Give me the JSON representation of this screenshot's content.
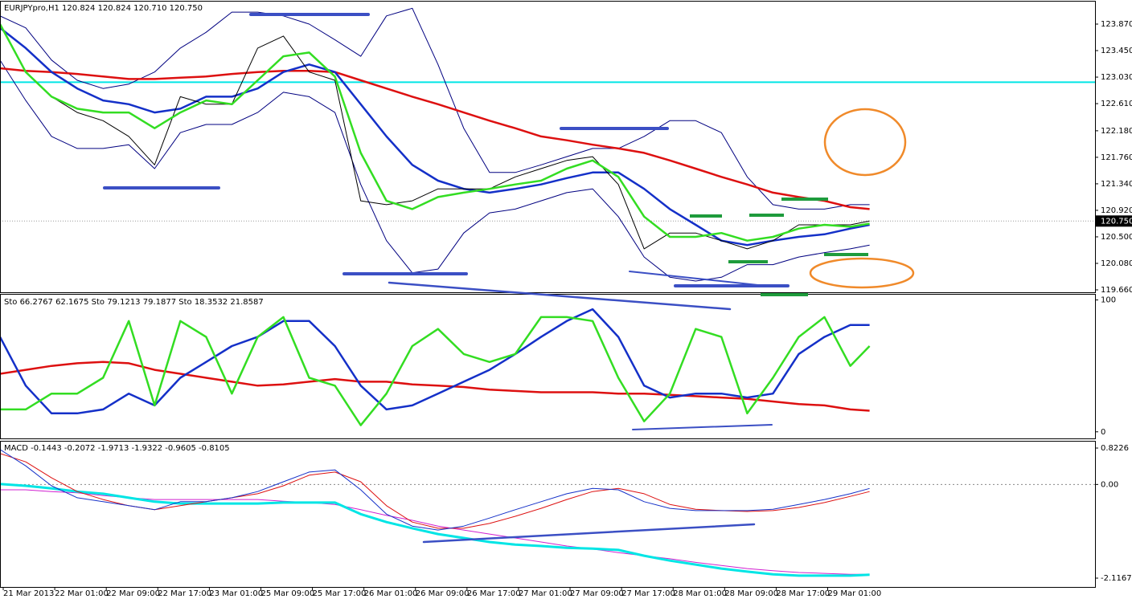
{
  "chart_data": [
    {
      "type": "line",
      "title": "EURJPYpro,H1  120.824 120.824 120.710 120.750",
      "x": [
        0,
        4,
        8,
        12,
        16,
        20,
        24,
        28,
        32,
        36,
        40,
        44,
        48,
        52,
        56,
        60,
        64,
        68,
        72,
        76,
        80,
        84,
        88,
        92,
        96,
        100,
        104,
        108,
        112,
        116,
        120,
        124,
        128,
        132,
        135
      ],
      "xlim": [
        0,
        170
      ],
      "ylim": [
        119.622,
        124.226
      ],
      "yticks": [
        {
          "value": 123.87,
          "label": "123.870"
        },
        {
          "value": 123.45,
          "label": "123.450"
        },
        {
          "value": 123.03,
          "label": "123.030"
        },
        {
          "value": 122.61,
          "label": "122.610"
        },
        {
          "value": 122.18,
          "label": "122.180"
        },
        {
          "value": 121.76,
          "label": "121.760"
        },
        {
          "value": 121.34,
          "label": "121.340"
        },
        {
          "value": 120.92,
          "label": "120.920"
        },
        {
          "value": 120.5,
          "label": "120.500"
        },
        {
          "value": 120.08,
          "label": "120.080"
        },
        {
          "value": 119.66,
          "label": "119.660"
        }
      ],
      "last_price": {
        "value": 120.75,
        "label": "120.750"
      },
      "level": {
        "value": 122.95,
        "color": "#00e5e5"
      },
      "series": [
        {
          "color": "#000080",
          "values": [
            124.0,
            123.81,
            123.3,
            122.98,
            122.85,
            122.92,
            123.11,
            123.49,
            123.74,
            124.06,
            124.06,
            124.0,
            123.87,
            123.62,
            123.36,
            124.0,
            124.12,
            123.23,
            122.22,
            121.52,
            121.52,
            121.64,
            121.77,
            121.9,
            121.9,
            122.09,
            122.34,
            122.34,
            122.15,
            121.45,
            121.01,
            120.94,
            120.94,
            121.01,
            121.01
          ]
        },
        {
          "color": "#000080",
          "values": [
            123.3,
            122.66,
            122.09,
            121.9,
            121.9,
            121.96,
            121.58,
            122.15,
            122.28,
            122.28,
            122.47,
            122.79,
            122.72,
            122.47,
            121.33,
            120.44,
            119.93,
            119.99,
            120.56,
            120.88,
            120.94,
            121.07,
            121.2,
            121.26,
            120.82,
            120.18,
            119.86,
            119.8,
            119.86,
            120.06,
            120.06,
            120.18,
            120.25,
            120.31,
            120.37
          ]
        },
        {
          "color": "#dd1010",
          "values": [
            123.17,
            123.13,
            123.11,
            123.08,
            123.04,
            123.0,
            123.0,
            123.02,
            123.04,
            123.08,
            123.11,
            123.13,
            123.13,
            123.11,
            122.98,
            122.85,
            122.72,
            122.6,
            122.47,
            122.34,
            122.22,
            122.09,
            122.03,
            121.96,
            121.9,
            121.83,
            121.71,
            121.58,
            121.45,
            121.33,
            121.2,
            121.13,
            121.07,
            120.97,
            120.94
          ]
        },
        {
          "color": "#1430c8",
          "values": [
            123.81,
            123.49,
            123.11,
            122.85,
            122.66,
            122.6,
            122.47,
            122.53,
            122.72,
            122.72,
            122.85,
            123.11,
            123.23,
            123.11,
            122.6,
            122.09,
            121.64,
            121.39,
            121.26,
            121.2,
            121.26,
            121.33,
            121.43,
            121.52,
            121.52,
            121.26,
            120.94,
            120.69,
            120.44,
            120.37,
            120.44,
            120.5,
            120.54,
            120.63,
            120.69
          ]
        },
        {
          "color": "#000000",
          "values": [
            123.87,
            123.11,
            122.72,
            122.47,
            122.34,
            122.09,
            121.64,
            122.72,
            122.6,
            122.6,
            123.49,
            123.68,
            123.11,
            122.98,
            121.07,
            121.01,
            121.07,
            121.26,
            121.26,
            121.26,
            121.45,
            121.58,
            121.71,
            121.77,
            121.33,
            120.31,
            120.56,
            120.56,
            120.44,
            120.31,
            120.44,
            120.69,
            120.69,
            120.69,
            120.75
          ]
        },
        {
          "color": "#33dd22",
          "values": [
            123.87,
            123.11,
            122.72,
            122.53,
            122.47,
            122.47,
            122.22,
            122.47,
            122.66,
            122.6,
            122.98,
            123.36,
            123.42,
            123.04,
            121.83,
            121.07,
            120.94,
            121.13,
            121.2,
            121.26,
            121.33,
            121.39,
            121.58,
            121.71,
            121.45,
            120.82,
            120.5,
            120.5,
            120.56,
            120.44,
            120.5,
            120.63,
            120.69,
            120.66,
            120.71
          ]
        }
      ]
    },
    {
      "type": "line",
      "title": "Sto 66.2767 62.1675  Sto 79.1213 79.1877  Sto 18.3532 21.8587",
      "x": [
        0,
        4,
        8,
        12,
        16,
        20,
        24,
        28,
        32,
        36,
        40,
        44,
        48,
        52,
        56,
        60,
        64,
        68,
        72,
        76,
        80,
        84,
        88,
        92,
        96,
        100,
        104,
        108,
        112,
        116,
        120,
        124,
        128,
        132,
        135
      ],
      "xlim": [
        0,
        170
      ],
      "ylim": [
        -5,
        104
      ],
      "yticks": [
        0,
        100
      ],
      "series": [
        {
          "color": "#dd1010",
          "values": [
            44,
            47,
            50,
            52,
            53,
            52,
            47,
            44,
            41,
            38,
            35,
            36,
            38,
            40,
            38,
            38,
            36,
            35,
            34,
            32,
            31,
            30,
            30,
            30,
            29,
            29,
            28,
            27,
            26,
            25,
            23,
            21,
            20,
            17,
            16
          ]
        },
        {
          "color": "#1430c8",
          "values": [
            72,
            35,
            14,
            14,
            17,
            29,
            20,
            41,
            53,
            65,
            72,
            84,
            84,
            65,
            35,
            17,
            20,
            29,
            38,
            47,
            59,
            72,
            84,
            93,
            72,
            35,
            26,
            29,
            29,
            26,
            29,
            59,
            72,
            81,
            81
          ]
        },
        {
          "color": "#33dd22",
          "values": [
            17,
            17,
            29,
            29,
            41,
            84,
            20,
            84,
            72,
            29,
            72,
            87,
            41,
            35,
            5,
            29,
            65,
            78,
            59,
            53,
            59,
            87,
            87,
            84,
            41,
            8,
            29,
            78,
            72,
            14,
            41,
            72,
            87,
            50,
            65
          ]
        }
      ]
    },
    {
      "type": "line",
      "title": "MACD -0.1443 -0.2072 -1.9713 -1.9322 -0.9605 -0.8105",
      "x": [
        0,
        4,
        8,
        12,
        16,
        20,
        24,
        28,
        32,
        36,
        40,
        44,
        48,
        52,
        56,
        60,
        64,
        68,
        72,
        76,
        80,
        84,
        88,
        92,
        96,
        100,
        104,
        108,
        112,
        116,
        120,
        124,
        128,
        132,
        135
      ],
      "xlim": [
        0,
        170
      ],
      "ylim": [
        -2.316,
        0.968
      ],
      "yticks": [
        0.8226,
        {
          "value": 0,
          "label": "0.00"
        },
        -2.1167
      ],
      "xticks": [
        {
          "value": 0,
          "label": "21 Mar 2013"
        },
        {
          "value": 8,
          "label": "22 Mar 01:00"
        },
        {
          "value": 16,
          "label": "22 Mar 09:00"
        },
        {
          "value": 24,
          "label": "22 Mar 17:00"
        },
        {
          "value": 32,
          "label": "23 Mar 01:00"
        },
        {
          "value": 40,
          "label": "25 Mar 09:00"
        },
        {
          "value": 48,
          "label": "25 Mar 17:00"
        },
        {
          "value": 56,
          "label": "26 Mar 01:00"
        },
        {
          "value": 64,
          "label": "26 Mar 09:00"
        },
        {
          "value": 72,
          "label": "26 Mar 17:00"
        },
        {
          "value": 80,
          "label": "27 Mar 01:00"
        },
        {
          "value": 88,
          "label": "27 Mar 09:00"
        },
        {
          "value": 96,
          "label": "27 Mar 17:00"
        },
        {
          "value": 104,
          "label": "28 Mar 01:00"
        },
        {
          "value": 112,
          "label": "28 Mar 09:00"
        },
        {
          "value": 120,
          "label": "28 Mar 17:00"
        },
        {
          "value": 128,
          "label": "29 Mar 01:00"
        }
      ],
      "series": [
        {
          "color": "#d020d0",
          "values": [
            -0.12,
            -0.12,
            -0.16,
            -0.19,
            -0.25,
            -0.3,
            -0.34,
            -0.34,
            -0.34,
            -0.34,
            -0.34,
            -0.38,
            -0.41,
            -0.45,
            -0.57,
            -0.7,
            -0.81,
            -0.94,
            -1.03,
            -1.12,
            -1.21,
            -1.3,
            -1.39,
            -1.46,
            -1.54,
            -1.61,
            -1.68,
            -1.76,
            -1.83,
            -1.9,
            -1.95,
            -1.99,
            -2.01,
            -2.03,
            -2.03
          ]
        },
        {
          "color": "#00e5e5",
          "values": [
            0.01,
            -0.03,
            -0.09,
            -0.16,
            -0.21,
            -0.3,
            -0.39,
            -0.43,
            -0.43,
            -0.43,
            -0.43,
            -0.41,
            -0.41,
            -0.41,
            -0.67,
            -0.85,
            -0.99,
            -1.12,
            -1.21,
            -1.3,
            -1.36,
            -1.39,
            -1.43,
            -1.45,
            -1.48,
            -1.61,
            -1.72,
            -1.81,
            -1.9,
            -1.97,
            -2.03,
            -2.06,
            -2.06,
            -2.06,
            -2.04
          ]
        },
        {
          "color": "#dd1010",
          "values": [
            0.7,
            0.51,
            0.15,
            -0.16,
            -0.34,
            -0.48,
            -0.57,
            -0.48,
            -0.39,
            -0.3,
            -0.21,
            -0.03,
            0.21,
            0.28,
            0.06,
            -0.48,
            -0.85,
            -0.99,
            -0.99,
            -0.88,
            -0.72,
            -0.54,
            -0.34,
            -0.16,
            -0.09,
            -0.21,
            -0.45,
            -0.56,
            -0.59,
            -0.61,
            -0.59,
            -0.52,
            -0.41,
            -0.27,
            -0.16
          ]
        },
        {
          "color": "#1430c8",
          "values": [
            0.79,
            0.42,
            -0.03,
            -0.3,
            -0.39,
            -0.48,
            -0.57,
            -0.39,
            -0.39,
            -0.3,
            -0.16,
            0.06,
            0.28,
            0.33,
            -0.12,
            -0.67,
            -0.94,
            -1.03,
            -0.94,
            -0.76,
            -0.57,
            -0.39,
            -0.21,
            -0.09,
            -0.12,
            -0.39,
            -0.54,
            -0.59,
            -0.59,
            -0.59,
            -0.56,
            -0.45,
            -0.34,
            -0.21,
            -0.09
          ]
        }
      ]
    }
  ]
}
